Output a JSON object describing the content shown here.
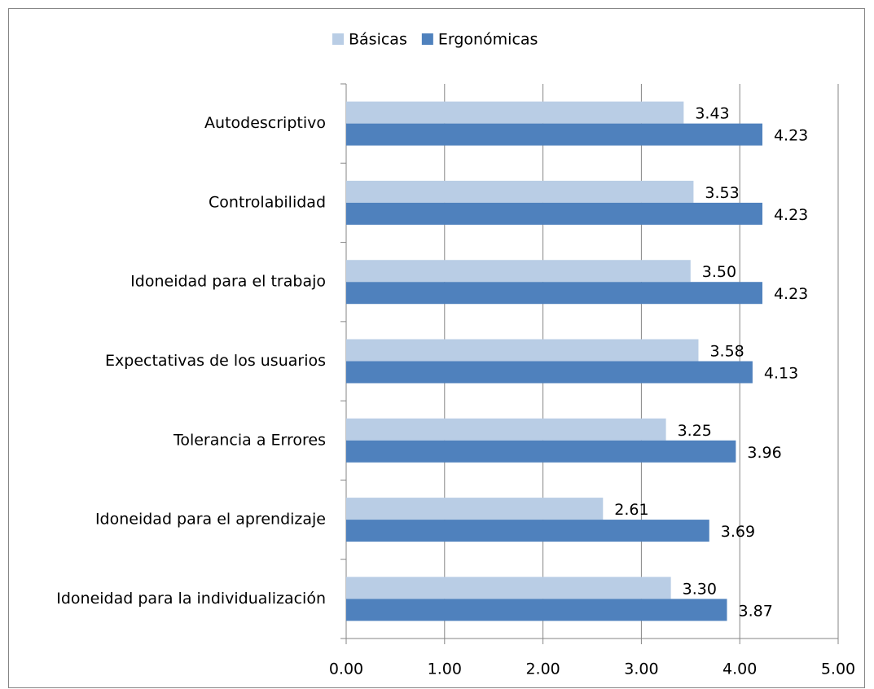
{
  "chart_data": {
    "type": "barh",
    "categories": [
      "Autodescriptivo",
      "Controlabilidad",
      "Idoneidad para el trabajo",
      "Expectativas de los usuarios",
      "Tolerancia a Errores",
      "Idoneidad para el aprendizaje",
      "Idoneidad para la individualización"
    ],
    "series": [
      {
        "name": "Básicas",
        "color": "#b9cde5",
        "values": [
          3.43,
          3.53,
          3.5,
          3.58,
          3.25,
          2.61,
          3.3
        ],
        "value_labels": [
          "3.43",
          "3.53",
          "3.50",
          "3.58",
          "3.25",
          "2.61",
          "3.30"
        ]
      },
      {
        "name": "Ergonómicas",
        "color": "#4f81bd",
        "values": [
          4.23,
          4.23,
          4.23,
          4.13,
          3.96,
          3.69,
          3.87
        ],
        "value_labels": [
          "4.23",
          "4.23",
          "4.23",
          "4.13",
          "3.96",
          "3.69",
          "3.87"
        ]
      }
    ],
    "xlim": [
      0,
      5
    ],
    "xticks": [
      {
        "value": 0,
        "label": "0.00"
      },
      {
        "value": 1,
        "label": "1.00"
      },
      {
        "value": 2,
        "label": "2.00"
      },
      {
        "value": 3,
        "label": "3.00"
      },
      {
        "value": 4,
        "label": "4.00"
      },
      {
        "value": 5,
        "label": "5.00"
      }
    ],
    "grid": true,
    "legend": "top"
  }
}
